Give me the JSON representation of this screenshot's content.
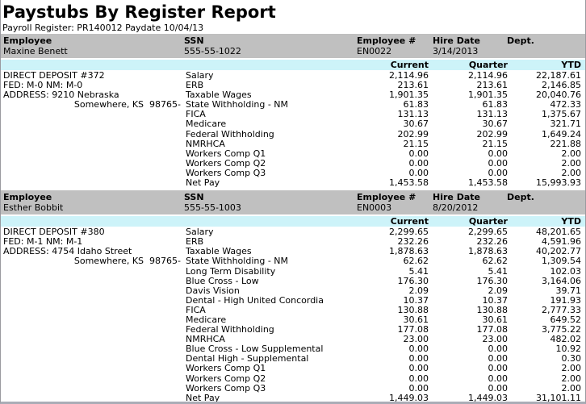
{
  "colors": {
    "header_band_bg": "#c0c0c0",
    "amount_band_bg": "#cdf3f9",
    "border": "#9a9aa0",
    "bottom_border": "#aaacb6",
    "text": "#000000"
  },
  "report": {
    "title": "Paystubs By Register Report",
    "subtitle": "Payroll Register: PR140012 Paydate 10/04/13"
  },
  "columns": {
    "employee": "Employee",
    "ssn": "SSN",
    "employee_number": "Employee #",
    "hire_date": "Hire Date",
    "dept": "Dept.",
    "current": "Current",
    "quarter": "Quarter",
    "ytd": "YTD"
  },
  "employees": [
    {
      "name": "Maxine Benett",
      "ssn": "555-55-1022",
      "employee_number": "EN0022",
      "hire_date": "3/14/2013",
      "dept": "",
      "deposit": "DIRECT DEPOSIT #372",
      "fed_status": "FED: M-0 NM: M-0",
      "address": "ADDRESS: 9210 Nebraska",
      "city": "Somewhere, KS  98765-",
      "items": [
        {
          "label": "Salary",
          "current": "2,114.96",
          "quarter": "2,114.96",
          "ytd": "22,187.61"
        },
        {
          "label": "ERB",
          "current": "213.61",
          "quarter": "213.61",
          "ytd": "2,146.85"
        },
        {
          "label": "Taxable Wages",
          "current": "1,901.35",
          "quarter": "1,901.35",
          "ytd": "20,040.76"
        },
        {
          "label": "State Withholding - NM",
          "current": "61.83",
          "quarter": "61.83",
          "ytd": "472.33"
        },
        {
          "label": "FICA",
          "current": "131.13",
          "quarter": "131.13",
          "ytd": "1,375.67"
        },
        {
          "label": "Medicare",
          "current": "30.67",
          "quarter": "30.67",
          "ytd": "321.71"
        },
        {
          "label": "Federal Withholding",
          "current": "202.99",
          "quarter": "202.99",
          "ytd": "1,649.24"
        },
        {
          "label": "NMRHCA",
          "current": "21.15",
          "quarter": "21.15",
          "ytd": "221.88"
        },
        {
          "label": "Workers Comp Q1",
          "current": "0.00",
          "quarter": "0.00",
          "ytd": "2.00"
        },
        {
          "label": "Workers Comp Q2",
          "current": "0.00",
          "quarter": "0.00",
          "ytd": "2.00"
        },
        {
          "label": "Workers Comp Q3",
          "current": "0.00",
          "quarter": "0.00",
          "ytd": "2.00"
        },
        {
          "label": "Net Pay",
          "current": "1,453.58",
          "quarter": "1,453.58",
          "ytd": "15,993.93"
        }
      ]
    },
    {
      "name": "Esther Bobbit",
      "ssn": "555-55-1003",
      "employee_number": "EN0003",
      "hire_date": "8/20/2012",
      "dept": "",
      "deposit": "DIRECT DEPOSIT #380",
      "fed_status": "FED: M-1 NM: M-1",
      "address": "ADDRESS: 4754 Idaho Street",
      "city": "Somewhere, KS  98765-",
      "items": [
        {
          "label": "Salary",
          "current": "2,299.65",
          "quarter": "2,299.65",
          "ytd": "48,201.65"
        },
        {
          "label": "ERB",
          "current": "232.26",
          "quarter": "232.26",
          "ytd": "4,591.96"
        },
        {
          "label": "Taxable Wages",
          "current": "1,878.63",
          "quarter": "1,878.63",
          "ytd": "40,202.77"
        },
        {
          "label": "State Withholding - NM",
          "current": "62.62",
          "quarter": "62.62",
          "ytd": "1,309.54"
        },
        {
          "label": "Long Term Disability",
          "current": "5.41",
          "quarter": "5.41",
          "ytd": "102.03"
        },
        {
          "label": "Blue Cross - Low",
          "current": "176.30",
          "quarter": "176.30",
          "ytd": "3,164.06"
        },
        {
          "label": "Davis Vision",
          "current": "2.09",
          "quarter": "2.09",
          "ytd": "39.71"
        },
        {
          "label": "Dental - High United Concordia",
          "current": "10.37",
          "quarter": "10.37",
          "ytd": "191.93"
        },
        {
          "label": "FICA",
          "current": "130.88",
          "quarter": "130.88",
          "ytd": "2,777.33"
        },
        {
          "label": "Medicare",
          "current": "30.61",
          "quarter": "30.61",
          "ytd": "649.52"
        },
        {
          "label": "Federal Withholding",
          "current": "177.08",
          "quarter": "177.08",
          "ytd": "3,775.22"
        },
        {
          "label": "NMRHCA",
          "current": "23.00",
          "quarter": "23.00",
          "ytd": "482.02"
        },
        {
          "label": "Blue Cross - Low Supplemental",
          "current": "0.00",
          "quarter": "0.00",
          "ytd": "10.92"
        },
        {
          "label": "Dental High - Supplemental",
          "current": "0.00",
          "quarter": "0.00",
          "ytd": "0.30"
        },
        {
          "label": "Workers Comp Q1",
          "current": "0.00",
          "quarter": "0.00",
          "ytd": "2.00"
        },
        {
          "label": "Workers Comp Q2",
          "current": "0.00",
          "quarter": "0.00",
          "ytd": "2.00"
        },
        {
          "label": "Workers Comp Q3",
          "current": "0.00",
          "quarter": "0.00",
          "ytd": "2.00"
        },
        {
          "label": "Net Pay",
          "current": "1,449.03",
          "quarter": "1,449.03",
          "ytd": "31,101.11"
        }
      ]
    }
  ]
}
